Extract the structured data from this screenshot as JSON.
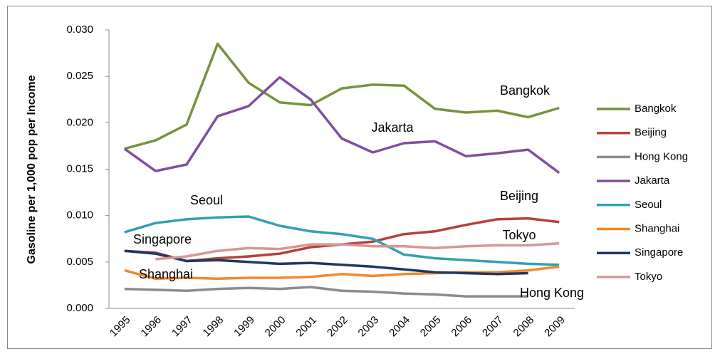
{
  "chart_data": {
    "type": "line",
    "y_label": "Gasoline per 1,000 pop per Income",
    "categories": [
      "1995",
      "1996",
      "1997",
      "1998",
      "1999",
      "2000",
      "2001",
      "2002",
      "2003",
      "2004",
      "2005",
      "2006",
      "2007",
      "2008",
      "2009"
    ],
    "ylim": [
      0,
      0.03
    ],
    "yticks": [
      {
        "value": 0,
        "label": "0.000"
      },
      0.005,
      {
        "value": 0.01,
        "label": "0.010"
      },
      0.015,
      {
        "value": 0.02,
        "label": "0.020"
      },
      0.025,
      {
        "value": 0.03,
        "label": "0.030"
      }
    ],
    "grid": false,
    "legend": "right",
    "series": [
      {
        "name": "Bangkok",
        "color": "#77933c",
        "values": [
          0.0172,
          0.0181,
          0.0198,
          0.0285,
          0.0243,
          0.0222,
          0.0219,
          0.0237,
          0.0241,
          0.024,
          0.0215,
          0.0211,
          0.0213,
          0.0206,
          0.0216
        ]
      },
      {
        "name": "Beijing",
        "color": "#b5413d",
        "values": [
          0.0062,
          0.006,
          0.0051,
          0.0054,
          0.0056,
          0.0059,
          0.0066,
          0.0069,
          0.0072,
          0.008,
          0.0083,
          0.009,
          0.0096,
          0.0097,
          0.0093
        ]
      },
      {
        "name": "Hong Kong",
        "color": "#8c8c8c",
        "values": [
          0.0021,
          0.002,
          0.0019,
          0.0021,
          0.0022,
          0.0021,
          0.0023,
          0.0019,
          0.0018,
          0.0016,
          0.0015,
          0.0013,
          0.0013,
          0.0013,
          null
        ]
      },
      {
        "name": "Jakarta",
        "color": "#7f4f9f",
        "values": [
          0.0172,
          0.0148,
          0.0155,
          0.0207,
          0.0218,
          0.0249,
          0.0225,
          0.0183,
          0.0168,
          0.0178,
          0.018,
          0.0164,
          0.0167,
          0.0171,
          0.0146
        ]
      },
      {
        "name": "Seoul",
        "color": "#31a0b5",
        "values": [
          0.0082,
          0.0092,
          0.0096,
          0.0098,
          0.0099,
          0.0089,
          0.0083,
          0.008,
          0.0075,
          0.0058,
          0.0054,
          0.0052,
          0.005,
          0.0048,
          0.0047
        ]
      },
      {
        "name": "Shanghai",
        "color": "#f08a2c",
        "values": [
          0.0041,
          0.0032,
          0.0033,
          0.0032,
          0.0033,
          0.0033,
          0.0034,
          0.0037,
          0.0035,
          0.0037,
          0.0038,
          0.0039,
          0.0039,
          0.0041,
          0.0045
        ]
      },
      {
        "name": "Singapore",
        "color": "#1f3864",
        "values": [
          0.0062,
          0.0059,
          0.0051,
          0.0052,
          0.005,
          0.0048,
          0.0049,
          0.0047,
          0.0045,
          0.0042,
          0.0039,
          0.0038,
          0.0037,
          0.0038,
          null
        ]
      },
      {
        "name": "Tokyo",
        "color": "#d99694",
        "values": [
          null,
          0.0053,
          0.0056,
          0.0062,
          0.0065,
          0.0064,
          0.0069,
          0.0069,
          0.0067,
          0.0067,
          0.0065,
          0.0067,
          0.0068,
          0.0068,
          0.007
        ]
      }
    ],
    "annotations": [
      "Bangkok",
      "Jakarta",
      "Seoul",
      "Beijing",
      "Singapore",
      "Tokyo",
      "Shanghai",
      "Hong Kong"
    ]
  }
}
